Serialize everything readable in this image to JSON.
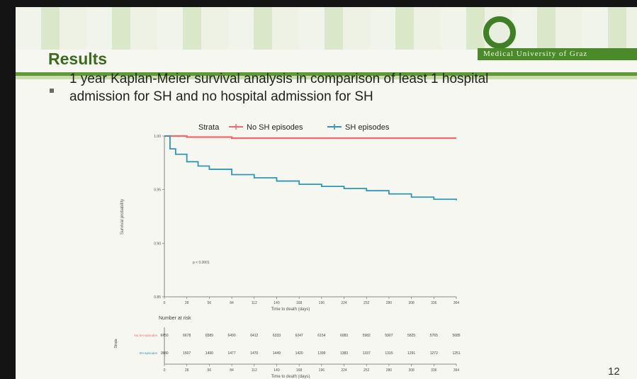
{
  "slide": {
    "title": "Results",
    "university": "Medical University of Graz",
    "bullet_line1": "1 year Kaplan-Meier survival analysis in comparison of least 1 hospital",
    "bullet_line2": "admission for SH and no hospital admission for SH",
    "slide_number": "12"
  },
  "colors": {
    "no_sh": "#f06a6a",
    "sh": "#2f97b5",
    "accent_green": "#5f9b35"
  },
  "chart_data": {
    "type": "line",
    "legend_title": "Strata",
    "legend_position": "top",
    "xlabel": "Time to death (days)",
    "ylabel": "Survival probability",
    "x_ticks": [
      0,
      28,
      56,
      84,
      112,
      140,
      168,
      196,
      224,
      252,
      280,
      308,
      336,
      364
    ],
    "x_ticks_text": [
      "0",
      "28",
      "56",
      "84",
      "112",
      "140",
      "168",
      "196",
      "224",
      "252",
      "280",
      "308",
      "336",
      "364"
    ],
    "y_ticks": [
      0.85,
      0.9,
      0.95,
      1.0
    ],
    "y_ticks_text": [
      "0.85",
      "0.90",
      "0.95",
      "1.00"
    ],
    "xlim": [
      0,
      364
    ],
    "ylim": [
      0.85,
      1.0
    ],
    "annotation": "p < 0.0001",
    "series": [
      {
        "name": "No SH episodes",
        "x": [
          0,
          28,
          56,
          84,
          112,
          140,
          168,
          196,
          224,
          252,
          280,
          308,
          336,
          364
        ],
        "y": [
          1.0,
          0.999,
          0.999,
          0.998,
          0.998,
          0.998,
          0.998,
          0.998,
          0.998,
          0.998,
          0.998,
          0.998,
          0.998,
          0.998
        ]
      },
      {
        "name": "SH episodes",
        "x": [
          0,
          7,
          14,
          28,
          42,
          56,
          84,
          112,
          140,
          168,
          196,
          224,
          252,
          280,
          308,
          336,
          364
        ],
        "y": [
          1.0,
          0.988,
          0.983,
          0.976,
          0.972,
          0.969,
          0.964,
          0.961,
          0.958,
          0.955,
          0.953,
          0.951,
          0.949,
          0.946,
          0.943,
          0.941,
          0.94
        ]
      }
    ],
    "risk_table": {
      "title": "Number at risk",
      "y_label": "Strata",
      "xlabel": "Time to death (days)",
      "rows": [
        {
          "name": "No SH episodes",
          "values": [
            "6750",
            "6678",
            "6589",
            "6490",
            "6412",
            "6333",
            "6247",
            "6154",
            "6083",
            "5982",
            "5907",
            "5825",
            "5765",
            "5685"
          ]
        },
        {
          "name": "SH episodes",
          "values": [
            "1580",
            "1507",
            "1490",
            "1477",
            "1470",
            "1449",
            "1420",
            "1399",
            "1383",
            "1337",
            "1315",
            "1291",
            "1272",
            "1251"
          ]
        }
      ]
    }
  }
}
